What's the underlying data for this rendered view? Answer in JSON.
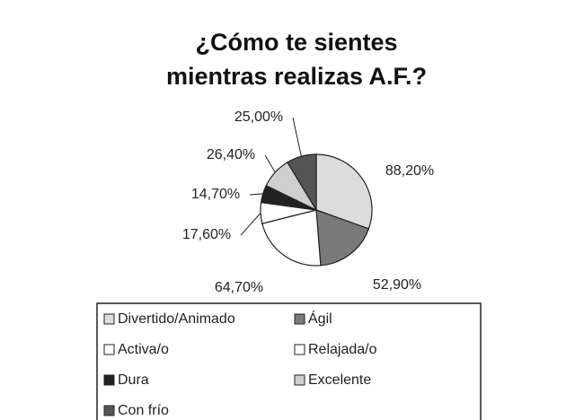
{
  "chart_data": {
    "type": "pie",
    "title": "¿Cómo te sientes mientras realizas A.F.?",
    "categories": [
      "Divertido/Animado",
      "Ágil",
      "Activa/o",
      "Relajada/o",
      "Dura",
      "Excelente",
      "Con frío"
    ],
    "values": [
      88.2,
      52.9,
      64.7,
      17.6,
      14.7,
      26.4,
      25.0
    ],
    "value_labels": [
      "88,20%",
      "52,90%",
      "64,70%",
      "17,60%",
      "14,70%",
      "26,40%",
      "25,00%"
    ],
    "colors": [
      "#dcdcdc",
      "#7a7a7a",
      "#ffffff",
      "#ffffff",
      "#222222",
      "#cfcfcf",
      "#555555"
    ]
  }
}
